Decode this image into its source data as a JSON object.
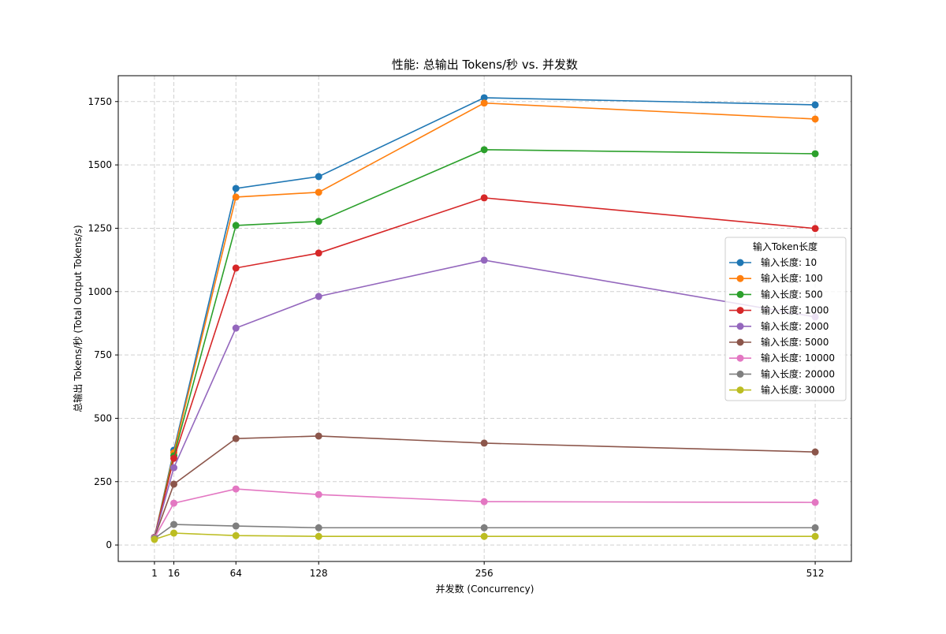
{
  "chart_data": {
    "type": "line",
    "title": "性能: 总输出 Tokens/秒 vs. 并发数",
    "xlabel": "并发数 (Concurrency)",
    "ylabel": "总输出 Tokens/秒 (Total Output Tokens/s)",
    "x": [
      1,
      16,
      64,
      128,
      256,
      512
    ],
    "xticks": [
      1,
      16,
      64,
      128,
      256,
      512
    ],
    "yticks": [
      0,
      250,
      500,
      750,
      1000,
      1250,
      1500,
      1750
    ],
    "xlim": [
      -27,
      540
    ],
    "ylim": [
      -65,
      1852
    ],
    "grid": true,
    "legend": {
      "title": "输入Token长度",
      "placement": "right"
    },
    "series": [
      {
        "name": "输入长度: 10",
        "color": "#1f77b4",
        "values": [
          30,
          374,
          1407,
          1454,
          1765,
          1737
        ]
      },
      {
        "name": "输入长度: 100",
        "color": "#ff7f0e",
        "values": [
          30,
          364,
          1373,
          1392,
          1744,
          1681
        ]
      },
      {
        "name": "输入长度: 500",
        "color": "#2ca02c",
        "values": [
          30,
          352,
          1261,
          1277,
          1560,
          1544
        ]
      },
      {
        "name": "输入长度: 1000",
        "color": "#d62728",
        "values": [
          30,
          342,
          1093,
          1152,
          1370,
          1249
        ]
      },
      {
        "name": "输入长度: 2000",
        "color": "#9467bd",
        "values": [
          30,
          305,
          856,
          981,
          1124,
          900
        ]
      },
      {
        "name": "输入长度: 5000",
        "color": "#8c564b",
        "values": [
          29,
          240,
          420,
          430,
          402,
          367
        ]
      },
      {
        "name": "输入长度: 10000",
        "color": "#e377c2",
        "values": [
          28,
          165,
          221,
          199,
          171,
          168
        ]
      },
      {
        "name": "输入长度: 20000",
        "color": "#7f7f7f",
        "values": [
          26,
          81,
          75,
          68,
          68,
          68
        ]
      },
      {
        "name": "输入长度: 30000",
        "color": "#bcbd22",
        "values": [
          22,
          47,
          37,
          34,
          34,
          34
        ]
      }
    ]
  }
}
